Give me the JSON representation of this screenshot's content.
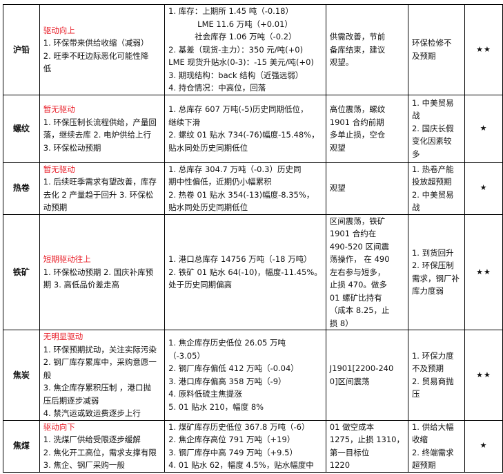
{
  "rows": [
    {
      "name": "沪铅",
      "driver_title": "驱动向上",
      "driver": [
        "1. 环保带来供给收缩（减弱）",
        "2. 旺季不旺边际恶化可能性降",
        "低"
      ],
      "data": [
        "1. 库存：上期所 1.45 吨（-0.18）",
        "LME 11.6 万吨（+0.01）",
        "社会库存 1.06 万吨（-0.2）",
        "2. 基差（现货-主力）：350 元/吨(+0)",
        "LME 现货升贴水(0-3)：-15 美元/吨(+0)",
        "3. 期现结构：back 结构（近强远弱）",
        "4. 持仓情况：中高位，回落"
      ],
      "strategy": [
        "供需改善，节前",
        "备库结束，建议",
        "观望。"
      ],
      "risk": [
        "环保检修不",
        "及预期"
      ],
      "stars": "★★"
    },
    {
      "name": "螺纹",
      "driver_title": "暂无驱动",
      "driver": [
        "1. 环保压制长流程供给，产量回",
        "落，继续去库 2. 电炉供给上行",
        "3. 环保松动预期"
      ],
      "data": [
        "1. 总库存 607 万吨(-5)历史同期低位，",
        "继续下滑",
        "2. 螺纹 01 贴水 734(-76)幅度-15.48%，",
        "贴水同处历史同期低位"
      ],
      "strategy": [
        "高位震荡，螺纹",
        "1901 合约前期",
        "多单止损，空仓",
        "观望"
      ],
      "risk": [
        "1. 中美贸易",
        "战",
        "2. 国庆长假",
        "变化因素较",
        "多"
      ],
      "stars": "★"
    },
    {
      "name": "热卷",
      "driver_title": "暂无驱动",
      "driver": [
        "1. 后续旺季需求有望改善，库存",
        "去化 2 产量趋于回升 3. 环保松",
        "动预期"
      ],
      "data": [
        "1.  总库存 304.7 万吨（-0.3）历史同",
        "期中性偏低，近期仍小幅累积",
        "2.  热卷 01 贴水 354(-13)幅度-8.35%，",
        "贴水同处历史同期低位"
      ],
      "strategy": [
        "观望"
      ],
      "risk": [
        "1. 热卷产能",
        "投放超预期",
        "2. 中美贸易",
        "战"
      ],
      "stars": "★"
    },
    {
      "name": "铁矿",
      "driver_title": "短期驱动往上",
      "driver": [
        "1. 环保松动预期 2. 国庆补库预",
        "期 3. 高低品价差走高"
      ],
      "data": [
        "1. 港口总库存 14756 万吨（-18 万吨）",
        "2. 铁矿 01 贴水 64(-10)，幅度-11.45%。",
        "处于历史同期偏高"
      ],
      "strategy": [
        "区间震荡，铁矿",
        "1901 合约在",
        "490-520 区间震",
        "荡操作， 在 490",
        "左右参与短多，",
        "止损 470。做多",
        "01 螺矿比持有",
        "（成本 8.25，止",
        "损 8）"
      ],
      "risk": [
        "1. 到货回升",
        "2. 环保压制",
        "需求，钢厂补",
        "库力度弱"
      ],
      "stars": "★★"
    },
    {
      "name": "焦炭",
      "driver_title": "无明显驱动",
      "driver": [
        "1. 环保预期扰动，关注实际污染",
        "2. 钢厂库存累库中，采购意愿一",
        "般",
        "3. 焦企库存累积压制 ，港口抛",
        "压后期逐步减弱",
        "4. 禁汽运或致运费逐步上行"
      ],
      "data": [
        "1. 焦企库存历史低位 26.05 万吨",
        "（-3.05）",
        "2. 钢厂库存偏低 412 万吨（-0.04）",
        "3. 港口库存偏高 358 万吨（-9）",
        "4. 原料低硫主焦提涨",
        "5. 01 贴水 210，幅度 8%"
      ],
      "strategy": [
        "J1901[2200-240",
        "0]区间震荡"
      ],
      "risk": [
        "1. 环保力度",
        "不及预期",
        "2. 贸易商抛",
        "压"
      ],
      "stars": "★★"
    },
    {
      "name": "焦煤",
      "driver_title": "驱动向下",
      "driver": [
        "1. 洗煤厂供给受限逐步缓解",
        "2. 焦化开工高位，需求支撑有限",
        "3. 焦企、钢厂采购一般"
      ],
      "data": [
        "1. 煤矿库存历史低位 367.8 万吨（-6）",
        "2. 焦企库存高位 791 万吨（+19）",
        "3. 钢厂库存中高 749 万吨（+9.5）",
        "4. 01 贴水 62，幅度 4.5%，贴水幅度中"
      ],
      "strategy": [
        "01 做空成本",
        "1275，止损 1310，",
        "第一目标位",
        "1220"
      ],
      "risk": [
        "1. 供给大幅",
        "收缩",
        "2. 终端需求",
        "超预期"
      ],
      "stars": "★"
    }
  ]
}
